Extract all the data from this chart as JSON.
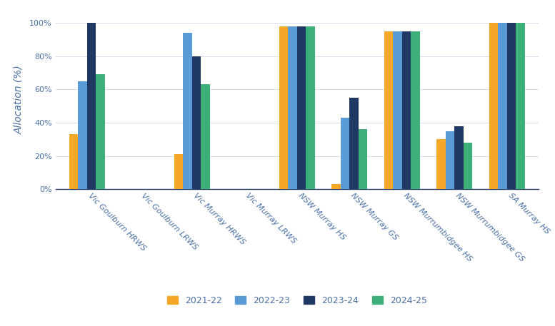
{
  "categories": [
    "Vic Goulburn HRWS",
    "Vic Goulburn LRWS",
    "Vic Murray HRWS",
    "Vic Murray LRWS",
    "NSW Murray HS",
    "NSW Murray GS",
    "NSW Murrumbidgee HS",
    "NSW Murrumbidgee GS",
    "SA Murray HS"
  ],
  "series": {
    "2021-22": [
      33,
      0,
      21,
      0,
      98,
      3,
      95,
      30,
      100
    ],
    "2022-23": [
      65,
      0,
      94,
      0,
      98,
      43,
      95,
      35,
      100
    ],
    "2023-24": [
      100,
      0,
      80,
      0,
      98,
      55,
      95,
      38,
      100
    ],
    "2024-25": [
      69,
      0,
      63,
      0,
      98,
      36,
      95,
      28,
      100
    ]
  },
  "colors": {
    "2021-22": "#F5A827",
    "2022-23": "#5B9BD5",
    "2023-24": "#1F3864",
    "2024-25": "#3DAF78"
  },
  "ylabel": "Allocation (%)",
  "yticks": [
    0,
    20,
    40,
    60,
    80,
    100
  ],
  "yticklabels": [
    "0%",
    "20%",
    "40%",
    "60%",
    "80%",
    "100%"
  ],
  "ylim": [
    0,
    108
  ],
  "bar_width": 0.17,
  "background_color": "#FFFFFF",
  "axis_color": "#1F3864",
  "text_color": "#4A6FA5",
  "legend_fontsize": 9,
  "tick_fontsize": 8,
  "ylabel_fontsize": 10
}
